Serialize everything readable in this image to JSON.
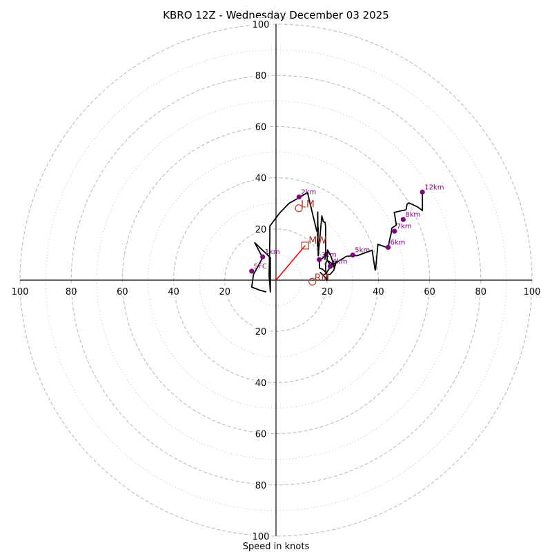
{
  "chart_data": {
    "type": "hodograph",
    "title": "KBRO 12Z - Wednesday December 03 2025",
    "xlabel": "Speed in knots",
    "units": "knots",
    "max_speed": 100,
    "ring_speeds_dashed": [
      20,
      40,
      60,
      80,
      100
    ],
    "ring_speeds_dotted": [
      10,
      30,
      50,
      70,
      90
    ],
    "tick_labels": {
      "left": [
        "100",
        "80",
        "60",
        "40",
        "20"
      ],
      "right": [
        "20",
        "40",
        "60",
        "80",
        "100"
      ],
      "top": [
        "20",
        "40",
        "60",
        "80",
        "100"
      ],
      "bottom": [
        "20",
        "40",
        "60",
        "80",
        "100"
      ]
    },
    "colors": {
      "profile": "#000000",
      "mean_wind": "#ff0000",
      "markers": "#800080",
      "motion": "#c0392b",
      "grid": "#bbbbbb"
    },
    "profile": [
      [
        -3.8,
        -4.6
      ],
      [
        -6.2,
        -4.0
      ],
      [
        -9.5,
        -2.7
      ],
      [
        -8.8,
        2.2
      ],
      [
        -5.2,
        8.8
      ],
      [
        -8.3,
        14.6
      ],
      [
        -4.0,
        10.5
      ],
      [
        -2.2,
        8.8
      ],
      [
        -2.2,
        -4.6
      ],
      [
        -2.7,
        1.9
      ],
      [
        -2.4,
        16.5
      ],
      [
        -2.4,
        21.1
      ],
      [
        1.4,
        26.2
      ],
      [
        5.1,
        30.0
      ],
      [
        9.0,
        32.2
      ],
      [
        12.3,
        34.2
      ],
      [
        15.9,
        19.2
      ],
      [
        16.5,
        20.5
      ],
      [
        16.2,
        13.2
      ],
      [
        16.3,
        26.6
      ],
      [
        16.5,
        9.5
      ],
      [
        17.9,
        25.1
      ],
      [
        18.5,
        22.8
      ],
      [
        19.2,
        22.6
      ],
      [
        19.4,
        20.5
      ],
      [
        19.4,
        9.8
      ],
      [
        19.1,
        8.1
      ],
      [
        19.4,
        10.6
      ],
      [
        18.5,
        8.8
      ],
      [
        17.0,
        7.7
      ],
      [
        17.0,
        4.6
      ],
      [
        18.1,
        4.3
      ],
      [
        19.4,
        3.1
      ],
      [
        19.4,
        6.5
      ],
      [
        20.0,
        8.0
      ],
      [
        20.1,
        11.8
      ],
      [
        21.4,
        9.5
      ],
      [
        22.0,
        7.8
      ],
      [
        22.6,
        5.1
      ],
      [
        23.6,
        7.4
      ],
      [
        22.6,
        3.9
      ],
      [
        21.1,
        2.2
      ],
      [
        19.9,
        2.3
      ],
      [
        19.9,
        -0.1
      ],
      [
        19.4,
        0.9
      ],
      [
        17.3,
        3.0
      ],
      [
        18.4,
        1.8
      ],
      [
        19.7,
        2.8
      ],
      [
        21.6,
        5.7
      ],
      [
        22.5,
        7.4
      ],
      [
        22.4,
        7.1
      ],
      [
        21.6,
        5.2
      ],
      [
        20.0,
        7.8
      ],
      [
        22.1,
        6.3
      ],
      [
        23.1,
        6.6
      ],
      [
        27.5,
        9.3
      ],
      [
        31.8,
        9.6
      ],
      [
        37.6,
        11.7
      ],
      [
        37.8,
        10.1
      ],
      [
        38.7,
        4.0
      ],
      [
        38.9,
        4.0
      ],
      [
        39.8,
        14.0
      ],
      [
        43.9,
        12.6
      ],
      [
        44.2,
        15.0
      ],
      [
        45.1,
        18.7
      ],
      [
        45.2,
        20.3
      ],
      [
        47.0,
        21.5
      ],
      [
        46.2,
        26.5
      ],
      [
        50.8,
        27.5
      ],
      [
        51.2,
        29.7
      ],
      [
        52.0,
        30.2
      ],
      [
        55.5,
        28.5
      ],
      [
        57.2,
        27.2
      ],
      [
        57.2,
        34.4
      ]
    ],
    "height_markers": [
      {
        "label": "SFC",
        "u": -9.5,
        "v": 3.5
      },
      {
        "label": "1km",
        "u": -5.2,
        "v": 9.1
      },
      {
        "label": "2km",
        "u": 9.0,
        "v": 32.5
      },
      {
        "label": "3km",
        "u": 16.9,
        "v": 8.0
      },
      {
        "label": "4km",
        "u": 21.2,
        "v": 5.4
      },
      {
        "label": "5km",
        "u": 30.0,
        "v": 9.8
      },
      {
        "label": "6km",
        "u": 43.8,
        "v": 12.8
      },
      {
        "label": "7km",
        "u": 46.3,
        "v": 19.1
      },
      {
        "label": "8km",
        "u": 49.7,
        "v": 23.7
      },
      {
        "label": "12km",
        "u": 57.2,
        "v": 34.4
      }
    ],
    "mean_wind": {
      "label": "MW",
      "u": 11.4,
      "v": 13.5
    },
    "left_mover": {
      "label": "LM",
      "u": 8.9,
      "v": 28.1
    },
    "right_mover": {
      "label": "RM",
      "u": 14.2,
      "v": -0.6
    }
  }
}
